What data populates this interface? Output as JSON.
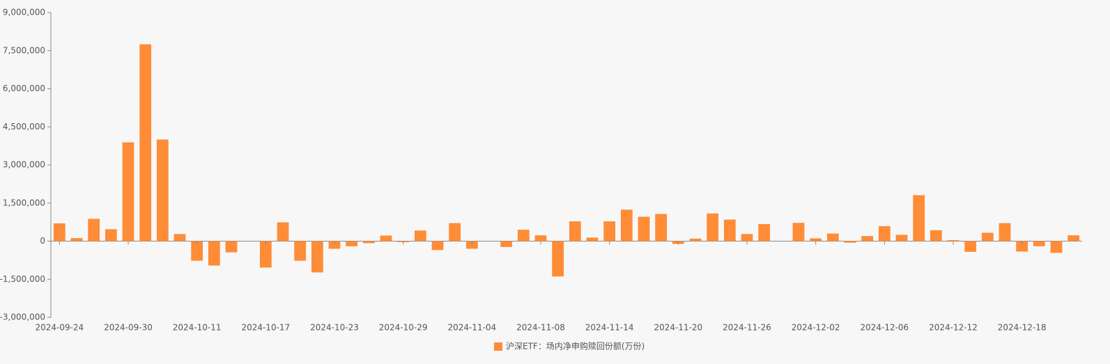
{
  "chart_data": {
    "type": "bar",
    "categories": [
      "2024-09-24",
      null,
      null,
      null,
      "2024-09-30",
      null,
      null,
      null,
      "2024-10-11",
      null,
      null,
      null,
      "2024-10-17",
      null,
      null,
      null,
      "2024-10-23",
      null,
      null,
      null,
      "2024-10-29",
      null,
      null,
      null,
      "2024-11-04",
      null,
      null,
      null,
      "2024-11-08",
      null,
      null,
      null,
      "2024-11-14",
      null,
      null,
      null,
      "2024-11-20",
      null,
      null,
      null,
      "2024-11-26",
      null,
      null,
      null,
      "2024-12-02",
      null,
      null,
      null,
      "2024-12-06",
      null,
      null,
      null,
      "2024-12-12",
      null,
      null,
      null,
      "2024-12-18",
      null,
      null,
      null
    ],
    "series": [
      {
        "name": "沪深ETF：场内净申购赎回份额(万份)",
        "color": "#ff8c36",
        "values": [
          700000,
          120000,
          880000,
          470000,
          3890000,
          7750000,
          4000000,
          280000,
          -770000,
          -960000,
          -440000,
          0,
          -1040000,
          740000,
          -770000,
          -1230000,
          -300000,
          -200000,
          -80000,
          220000,
          -40000,
          420000,
          -350000,
          710000,
          -300000,
          0,
          -230000,
          450000,
          230000,
          -1390000,
          780000,
          140000,
          780000,
          1240000,
          960000,
          1070000,
          -110000,
          100000,
          1090000,
          850000,
          280000,
          670000,
          0,
          720000,
          110000,
          300000,
          -60000,
          200000,
          590000,
          250000,
          1810000,
          430000,
          40000,
          -420000,
          330000,
          710000,
          -410000,
          -200000,
          -460000,
          230000
        ]
      }
    ],
    "ylim": [
      -3000000,
      9000000
    ],
    "yticks": [
      {
        "value": -3000000,
        "label": "-3,000,000"
      },
      {
        "value": -1500000,
        "label": "-1,500,000"
      },
      {
        "value": 0,
        "label": "0"
      },
      {
        "value": 1500000,
        "label": "1,500,000"
      },
      {
        "value": 3000000,
        "label": "3,000,000"
      },
      {
        "value": 4500000,
        "label": "4,500,000"
      },
      {
        "value": 6000000,
        "label": "6,000,000"
      },
      {
        "value": 7500000,
        "label": "7,500,000"
      },
      {
        "value": 9000000,
        "label": "9,000,000"
      }
    ],
    "grid": false,
    "legend": "bottom"
  }
}
